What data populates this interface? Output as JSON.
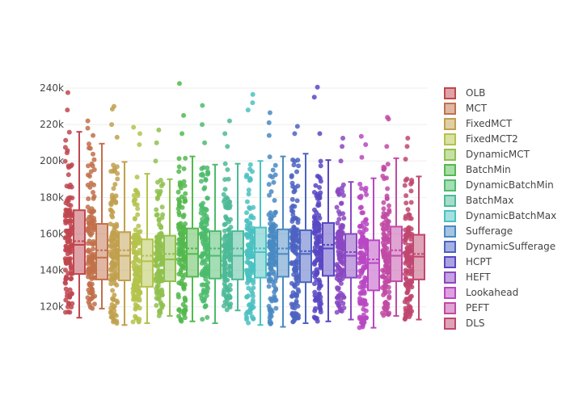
{
  "chart_data": {
    "type": "box",
    "title": "",
    "xlabel": "",
    "ylabel": "",
    "ylim": [
      111000,
      244000
    ],
    "y_ticks": [
      {
        "value": 120000,
        "label": "120k"
      },
      {
        "value": 140000,
        "label": "140k"
      },
      {
        "value": 160000,
        "label": "160k"
      },
      {
        "value": 180000,
        "label": "180k"
      },
      {
        "value": 200000,
        "label": "200k"
      },
      {
        "value": 220000,
        "label": "220k"
      },
      {
        "value": 240000,
        "label": "240k"
      }
    ],
    "boxmean": true,
    "show_all_points": true,
    "grid": true,
    "legend_position": "right",
    "series": [
      {
        "name": "OLB",
        "color": "#c0474f",
        "lowerfence": 114000,
        "q1": 138000,
        "median": 154000,
        "mean": 156000,
        "q3": 173000,
        "upperfence": 216000,
        "outliers": [
          228000,
          237500
        ]
      },
      {
        "name": "MCT",
        "color": "#c1704a",
        "lowerfence": 119000,
        "q1": 135000,
        "median": 147000,
        "mean": 151000,
        "q3": 165500,
        "upperfence": 209500,
        "outliers": [
          214000,
          218000,
          222000
        ]
      },
      {
        "name": "FixedMCT",
        "color": "#c1a04d",
        "lowerfence": 110000,
        "q1": 134500,
        "median": 148000,
        "mean": 151000,
        "q3": 161000,
        "upperfence": 199500,
        "outliers": [
          213000,
          220000,
          228500,
          230000
        ]
      },
      {
        "name": "FixedMCT2",
        "color": "#b4c34c",
        "lowerfence": 111000,
        "q1": 131000,
        "median": 145000,
        "mean": 148000,
        "q3": 157000,
        "upperfence": 193000,
        "outliers": [
          209000,
          215000,
          218500
        ]
      },
      {
        "name": "DynamicMCT",
        "color": "#8fc14d",
        "lowerfence": 115000,
        "q1": 134000,
        "median": 146000,
        "mean": 149000,
        "q3": 159000,
        "upperfence": 190000,
        "outliers": [
          200000,
          210000,
          217000
        ]
      },
      {
        "name": "BatchMin",
        "color": "#53b94e",
        "lowerfence": 112000,
        "q1": 136500,
        "median": 149000,
        "mean": 152000,
        "q3": 163000,
        "upperfence": 202500,
        "outliers": [
          215000,
          225000,
          242500
        ]
      },
      {
        "name": "DynamicBatchMin",
        "color": "#4cbc6c",
        "lowerfence": 111000,
        "q1": 135500,
        "median": 148000,
        "mean": 152000,
        "q3": 161500,
        "upperfence": 198000,
        "outliers": [
          210000,
          220000,
          230500
        ]
      },
      {
        "name": "BatchMax",
        "color": "#4cba97",
        "lowerfence": 118000,
        "q1": 135000,
        "median": 148000,
        "mean": 152000,
        "q3": 161500,
        "upperfence": 198500,
        "outliers": [
          208000,
          215000,
          222000
        ]
      },
      {
        "name": "DynamicBatchMax",
        "color": "#4bc1c1",
        "lowerfence": 110000,
        "q1": 136000,
        "median": 150000,
        "mean": 152000,
        "q3": 163500,
        "upperfence": 200000,
        "outliers": [
          228000,
          232000,
          236500
        ]
      },
      {
        "name": "Sufferage",
        "color": "#4a8ac3",
        "lowerfence": 109000,
        "q1": 136500,
        "median": 149000,
        "mean": 152000,
        "q3": 162500,
        "upperfence": 202500,
        "outliers": [
          214000,
          221000,
          226500
        ]
      },
      {
        "name": "DynamicSufferage",
        "color": "#4c63c2",
        "lowerfence": 111000,
        "q1": 133500,
        "median": 149000,
        "mean": 150500,
        "q3": 162000,
        "upperfence": 204000,
        "outliers": [
          215000,
          219000
        ]
      },
      {
        "name": "HCPT",
        "color": "#5946c3",
        "lowerfence": 112000,
        "q1": 137000,
        "median": 152000,
        "mean": 154000,
        "q3": 166000,
        "upperfence": 200500,
        "outliers": [
          215000,
          235000,
          240500
        ]
      },
      {
        "name": "HEFT",
        "color": "#8a48c1",
        "lowerfence": 113000,
        "q1": 136000,
        "median": 148000,
        "mean": 150000,
        "q3": 160000,
        "upperfence": 188500,
        "outliers": [
          200000,
          208000,
          212500
        ]
      },
      {
        "name": "Lookahead",
        "color": "#b946c2",
        "lowerfence": 108500,
        "q1": 129000,
        "median": 144000,
        "mean": 146000,
        "q3": 156500,
        "upperfence": 190500,
        "outliers": [
          202000,
          209000,
          213500
        ]
      },
      {
        "name": "PEFT",
        "color": "#c14aa5",
        "lowerfence": 115000,
        "q1": 134000,
        "median": 148000,
        "mean": 151000,
        "q3": 164000,
        "upperfence": 201500,
        "outliers": [
          208000,
          223000,
          224000
        ]
      },
      {
        "name": "DLS",
        "color": "#c04770",
        "lowerfence": 113000,
        "q1": 135000,
        "median": 147500,
        "mean": 149000,
        "q3": 159500,
        "upperfence": 191500,
        "outliers": [
          201000,
          208000,
          212500
        ]
      }
    ]
  }
}
